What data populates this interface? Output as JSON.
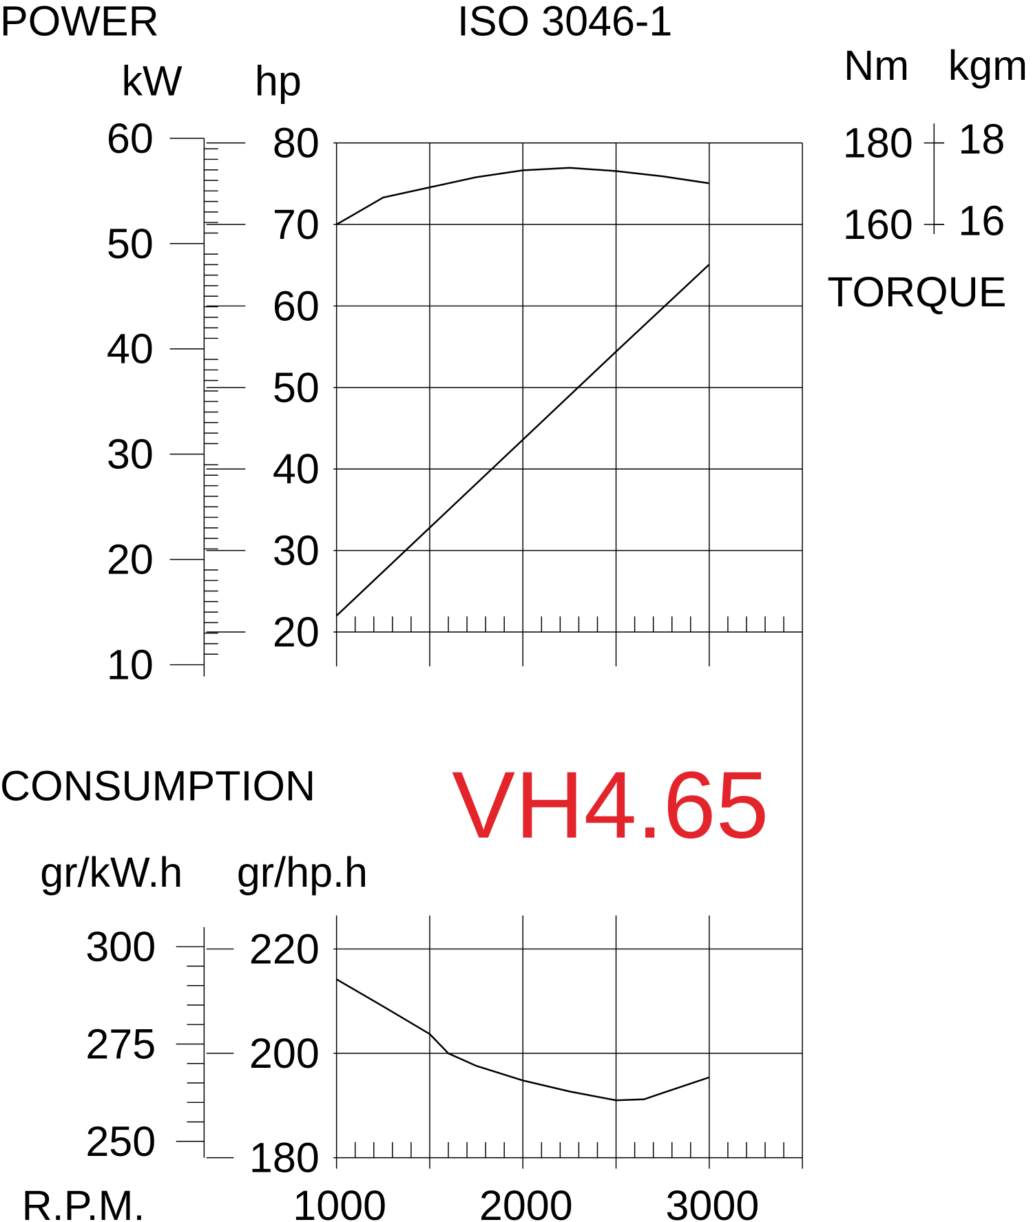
{
  "chart_data": [
    {
      "type": "line",
      "title": "ISO 3046-1",
      "y_title": "POWER",
      "y_label": "hp",
      "xlim": [
        1000,
        3500
      ],
      "x_grid": [
        1000,
        1500,
        2000,
        2500,
        3000,
        3500
      ],
      "xticks_minor": [
        1100,
        1200,
        1300,
        1400,
        1600,
        1700,
        1800,
        1900,
        2100,
        2200,
        2300,
        2400,
        2600,
        2700,
        2800,
        2900,
        3100,
        3200,
        3300,
        3400
      ],
      "ylim": [
        20,
        80
      ],
      "yticks": [
        20,
        30,
        40,
        50,
        60,
        70,
        80
      ],
      "grid": true,
      "kw_axis": {
        "label": "kW",
        "lim": [
          10,
          60
        ],
        "ticks": [
          10,
          20,
          30,
          40,
          50,
          60
        ],
        "minor_ticks": [
          11,
          12,
          13,
          14,
          15,
          16,
          17,
          18,
          19,
          21,
          22,
          23,
          24,
          25,
          26,
          27,
          28,
          29,
          31,
          32,
          33,
          34,
          35,
          36,
          37,
          38,
          39,
          41,
          42,
          43,
          44,
          45,
          46,
          47,
          48,
          49,
          51,
          52,
          53,
          54,
          55,
          56,
          57,
          58,
          59
        ]
      },
      "y2_title": "TORQUE",
      "y2_label": "Nm",
      "y2lim": [
        60,
        180
      ],
      "y2ticks": [
        160,
        180
      ],
      "kgm_axis": {
        "label": "kgm",
        "lim": [
          6,
          18
        ],
        "ticks": [
          16,
          18
        ]
      },
      "series": [
        {
          "color": "#000000",
          "x": [
            1000,
            1500,
            2000,
            2500,
            3000
          ],
          "values": [
            22,
            32.8,
            43.6,
            54.4,
            65.1
          ]
        },
        {
          "color": "#000000",
          "axis": "y2",
          "x": [
            1000,
            1250,
            1500,
            1750,
            2000,
            2250,
            2500,
            2750,
            3000
          ],
          "values": [
            160,
            166.6,
            169.1,
            171.6,
            173.3,
            173.9,
            173.1,
            171.8,
            170.1
          ]
        }
      ]
    },
    {
      "type": "line",
      "title": "CONSUMPTION",
      "model": "VH4.65",
      "model_color": "#e3242b",
      "y_label": "gr/hp.h",
      "x_label": "R.P.M.",
      "xlim": [
        1000,
        3500
      ],
      "x_grid": [
        1000,
        1500,
        2000,
        2500,
        3000,
        3500
      ],
      "xticks": [
        1000,
        2000,
        3000
      ],
      "xticks_minor": [
        1100,
        1200,
        1300,
        1400,
        1600,
        1700,
        1800,
        1900,
        2100,
        2200,
        2300,
        2400,
        2600,
        2700,
        2800,
        2900,
        3100,
        3200,
        3300,
        3400
      ],
      "ylim": [
        180,
        220
      ],
      "yticks": [
        180,
        200,
        220
      ],
      "grid": true,
      "kw_axis": {
        "label": "gr/kW.h",
        "lim": [
          250,
          300
        ],
        "ticks": [
          250,
          275,
          300
        ],
        "minor_ticks": [
          255,
          260,
          265,
          270,
          280,
          285,
          290,
          295
        ]
      },
      "series": [
        {
          "color": "#000000",
          "x": [
            1000,
            1250,
            1500,
            1600,
            1750,
            2000,
            2250,
            2500,
            2650,
            2750,
            3000
          ],
          "values": [
            214.2,
            209,
            203.7,
            200,
            197.6,
            194.8,
            192.7,
            191,
            191.2,
            192.4,
            195.4
          ]
        }
      ]
    }
  ]
}
